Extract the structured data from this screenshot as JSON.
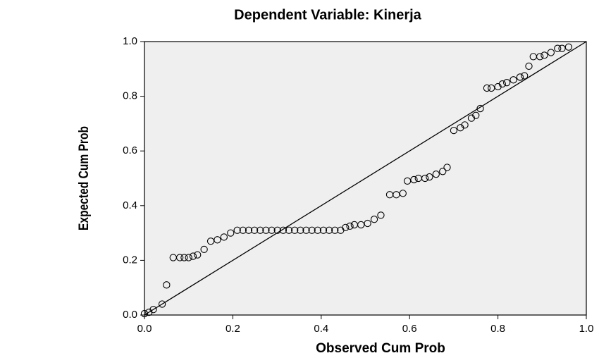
{
  "chart_data": {
    "type": "scatter",
    "title": "Dependent Variable: Kinerja",
    "xlabel": "Observed Cum Prob",
    "ylabel": "Expected Cum Prob",
    "xlim": [
      0,
      1
    ],
    "ylim": [
      0,
      1
    ],
    "xticks": [
      {
        "value": 0,
        "label": "0.0"
      },
      0.2,
      0.4,
      0.6,
      0.8,
      {
        "value": 1,
        "label": "1.0"
      }
    ],
    "yticks": [
      {
        "value": 0,
        "label": "0.0"
      },
      0.2,
      0.4,
      0.6,
      0.8,
      {
        "value": 1,
        "label": "1.0"
      }
    ],
    "color": "#000000",
    "series": [
      {
        "x": [
          0.0,
          0.01,
          0.02,
          0.04,
          0.05,
          0.065,
          0.08,
          0.09,
          0.1,
          0.11,
          0.12,
          0.135,
          0.15,
          0.165,
          0.18,
          0.195,
          0.21,
          0.223,
          0.236,
          0.249,
          0.262,
          0.275,
          0.288,
          0.301,
          0.314,
          0.327,
          0.34,
          0.353,
          0.366,
          0.379,
          0.392,
          0.405,
          0.418,
          0.431,
          0.444,
          0.455,
          0.465,
          0.475,
          0.49,
          0.505,
          0.52,
          0.535,
          0.555,
          0.57,
          0.585,
          0.595,
          0.61,
          0.62,
          0.635,
          0.645,
          0.66,
          0.675,
          0.685,
          0.7,
          0.715,
          0.725,
          0.74,
          0.75,
          0.76,
          0.775,
          0.785,
          0.8,
          0.81,
          0.82,
          0.835,
          0.85,
          0.86,
          0.87,
          0.88,
          0.895,
          0.905,
          0.92,
          0.935,
          0.945,
          0.96
        ],
        "values": [
          0.005,
          0.01,
          0.02,
          0.04,
          0.11,
          0.21,
          0.21,
          0.21,
          0.21,
          0.215,
          0.22,
          0.24,
          0.27,
          0.275,
          0.285,
          0.3,
          0.31,
          0.31,
          0.31,
          0.31,
          0.31,
          0.31,
          0.31,
          0.31,
          0.31,
          0.31,
          0.31,
          0.31,
          0.31,
          0.31,
          0.31,
          0.31,
          0.31,
          0.31,
          0.31,
          0.32,
          0.325,
          0.33,
          0.33,
          0.335,
          0.35,
          0.365,
          0.44,
          0.44,
          0.445,
          0.49,
          0.495,
          0.5,
          0.5,
          0.505,
          0.515,
          0.525,
          0.54,
          0.675,
          0.685,
          0.695,
          0.72,
          0.73,
          0.755,
          0.83,
          0.83,
          0.835,
          0.845,
          0.85,
          0.86,
          0.87,
          0.875,
          0.91,
          0.945,
          0.945,
          0.95,
          0.96,
          0.975,
          0.975,
          0.98
        ]
      }
    ]
  }
}
